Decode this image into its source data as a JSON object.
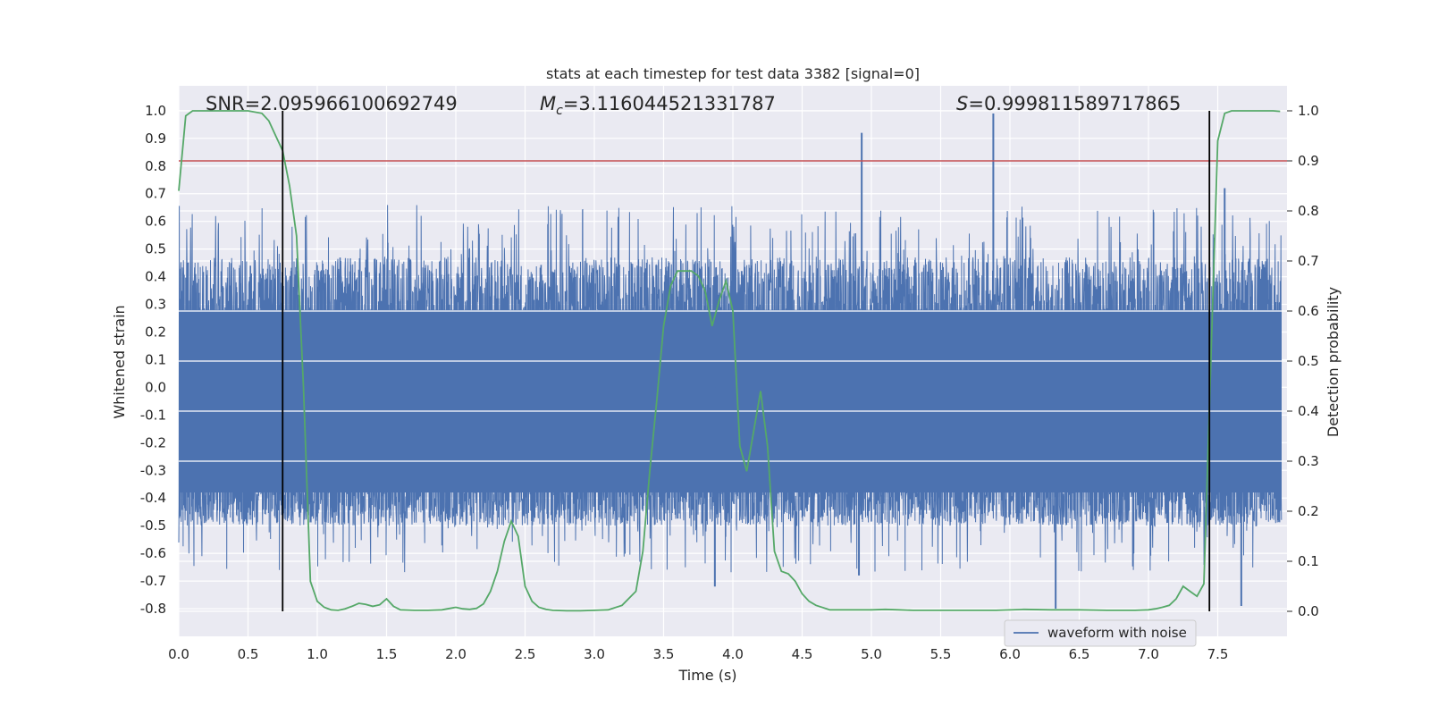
{
  "chart_data": {
    "type": "line",
    "title": "stats at each timestep for test data 3382 [signal=0]",
    "xlabel": "Time (s)",
    "ylabel": "Whitened strain",
    "y2label": "Detection probability",
    "xlim": [
      0.0,
      8.0
    ],
    "ylim": [
      -0.9,
      1.09
    ],
    "y2lim": [
      -0.05,
      1.05
    ],
    "xticks": [
      "0.0",
      "0.5",
      "1.0",
      "1.5",
      "2.0",
      "2.5",
      "3.0",
      "3.5",
      "4.0",
      "4.5",
      "5.0",
      "5.5",
      "6.0",
      "6.5",
      "7.0",
      "7.5"
    ],
    "yticks": [
      "1.0",
      "0.9",
      "0.8",
      "0.7",
      "0.6",
      "0.5",
      "0.4",
      "0.3",
      "0.2",
      "0.1",
      "0.0",
      "-0.1",
      "-0.2",
      "-0.3",
      "-0.4",
      "-0.5",
      "-0.6",
      "-0.7",
      "-0.8"
    ],
    "y2ticks": [
      "1.0",
      "0.9",
      "0.8",
      "0.7",
      "0.6",
      "0.5",
      "0.4",
      "0.3",
      "0.2",
      "0.1",
      "0.0"
    ],
    "annotations": {
      "snr": "SNR=2.095966100692749",
      "mc_symbol": "M",
      "mc_sub": "c",
      "mc_value": "=3.116044521331787",
      "s_symbol": "S",
      "s_value": "=0.999811589717865"
    },
    "legend": {
      "label": "waveform with noise",
      "placement": "lower-right"
    },
    "threshold_y2": 0.9,
    "vertical_lines_x": [
      0.75,
      7.44
    ],
    "waveform": {
      "name": "waveform with noise",
      "color": "#4c72b0",
      "band_low": -0.38,
      "band_high": 0.28,
      "typical_peak": 0.42,
      "typical_trough": -0.45,
      "spikes": [
        {
          "x": 4.93,
          "y": 0.92
        },
        {
          "x": 5.88,
          "y": 0.99
        },
        {
          "x": 7.55,
          "y": 0.72
        },
        {
          "x": 6.33,
          "y": -0.8
        },
        {
          "x": 7.67,
          "y": -0.79
        },
        {
          "x": 3.87,
          "y": -0.72
        },
        {
          "x": 4.91,
          "y": -0.68
        }
      ]
    },
    "series": [
      {
        "name": "detection probability",
        "color": "#55a868",
        "axis": "y2",
        "x": [
          0.0,
          0.05,
          0.1,
          0.15,
          0.2,
          0.3,
          0.4,
          0.5,
          0.6,
          0.65,
          0.7,
          0.75,
          0.8,
          0.85,
          0.9,
          0.95,
          1.0,
          1.05,
          1.1,
          1.15,
          1.2,
          1.25,
          1.3,
          1.35,
          1.4,
          1.45,
          1.5,
          1.55,
          1.6,
          1.7,
          1.8,
          1.9,
          2.0,
          2.05,
          2.1,
          2.15,
          2.2,
          2.25,
          2.3,
          2.35,
          2.4,
          2.45,
          2.5,
          2.55,
          2.6,
          2.65,
          2.7,
          2.8,
          2.9,
          3.0,
          3.1,
          3.2,
          3.3,
          3.35,
          3.4,
          3.45,
          3.5,
          3.55,
          3.6,
          3.65,
          3.7,
          3.75,
          3.8,
          3.85,
          3.9,
          3.95,
          4.0,
          4.05,
          4.1,
          4.15,
          4.2,
          4.25,
          4.3,
          4.35,
          4.4,
          4.45,
          4.5,
          4.55,
          4.6,
          4.7,
          4.8,
          4.9,
          5.0,
          5.1,
          5.2,
          5.3,
          5.5,
          5.7,
          5.9,
          6.1,
          6.3,
          6.5,
          6.7,
          6.9,
          7.0,
          7.05,
          7.1,
          7.15,
          7.2,
          7.25,
          7.3,
          7.35,
          7.4,
          7.45,
          7.5,
          7.55,
          7.6,
          7.7,
          7.8,
          7.9,
          7.95
        ],
        "values": [
          0.84,
          0.99,
          1.0,
          1.0,
          1.0,
          1.0,
          1.0,
          1.0,
          0.995,
          0.98,
          0.95,
          0.92,
          0.85,
          0.75,
          0.45,
          0.06,
          0.02,
          0.008,
          0.003,
          0.002,
          0.005,
          0.01,
          0.016,
          0.014,
          0.01,
          0.013,
          0.025,
          0.01,
          0.003,
          0.002,
          0.002,
          0.003,
          0.008,
          0.005,
          0.004,
          0.006,
          0.015,
          0.04,
          0.08,
          0.14,
          0.18,
          0.15,
          0.05,
          0.02,
          0.008,
          0.004,
          0.002,
          0.001,
          0.001,
          0.002,
          0.003,
          0.012,
          0.04,
          0.12,
          0.28,
          0.42,
          0.57,
          0.65,
          0.68,
          0.68,
          0.68,
          0.67,
          0.64,
          0.57,
          0.62,
          0.66,
          0.6,
          0.33,
          0.28,
          0.36,
          0.44,
          0.33,
          0.12,
          0.08,
          0.075,
          0.06,
          0.035,
          0.02,
          0.012,
          0.003,
          0.003,
          0.003,
          0.003,
          0.004,
          0.003,
          0.002,
          0.002,
          0.002,
          0.002,
          0.004,
          0.003,
          0.003,
          0.002,
          0.002,
          0.003,
          0.005,
          0.008,
          0.012,
          0.025,
          0.05,
          0.04,
          0.03,
          0.055,
          0.5,
          0.94,
          0.995,
          1.0,
          1.0,
          1.0,
          1.0,
          0.999
        ]
      }
    ]
  }
}
